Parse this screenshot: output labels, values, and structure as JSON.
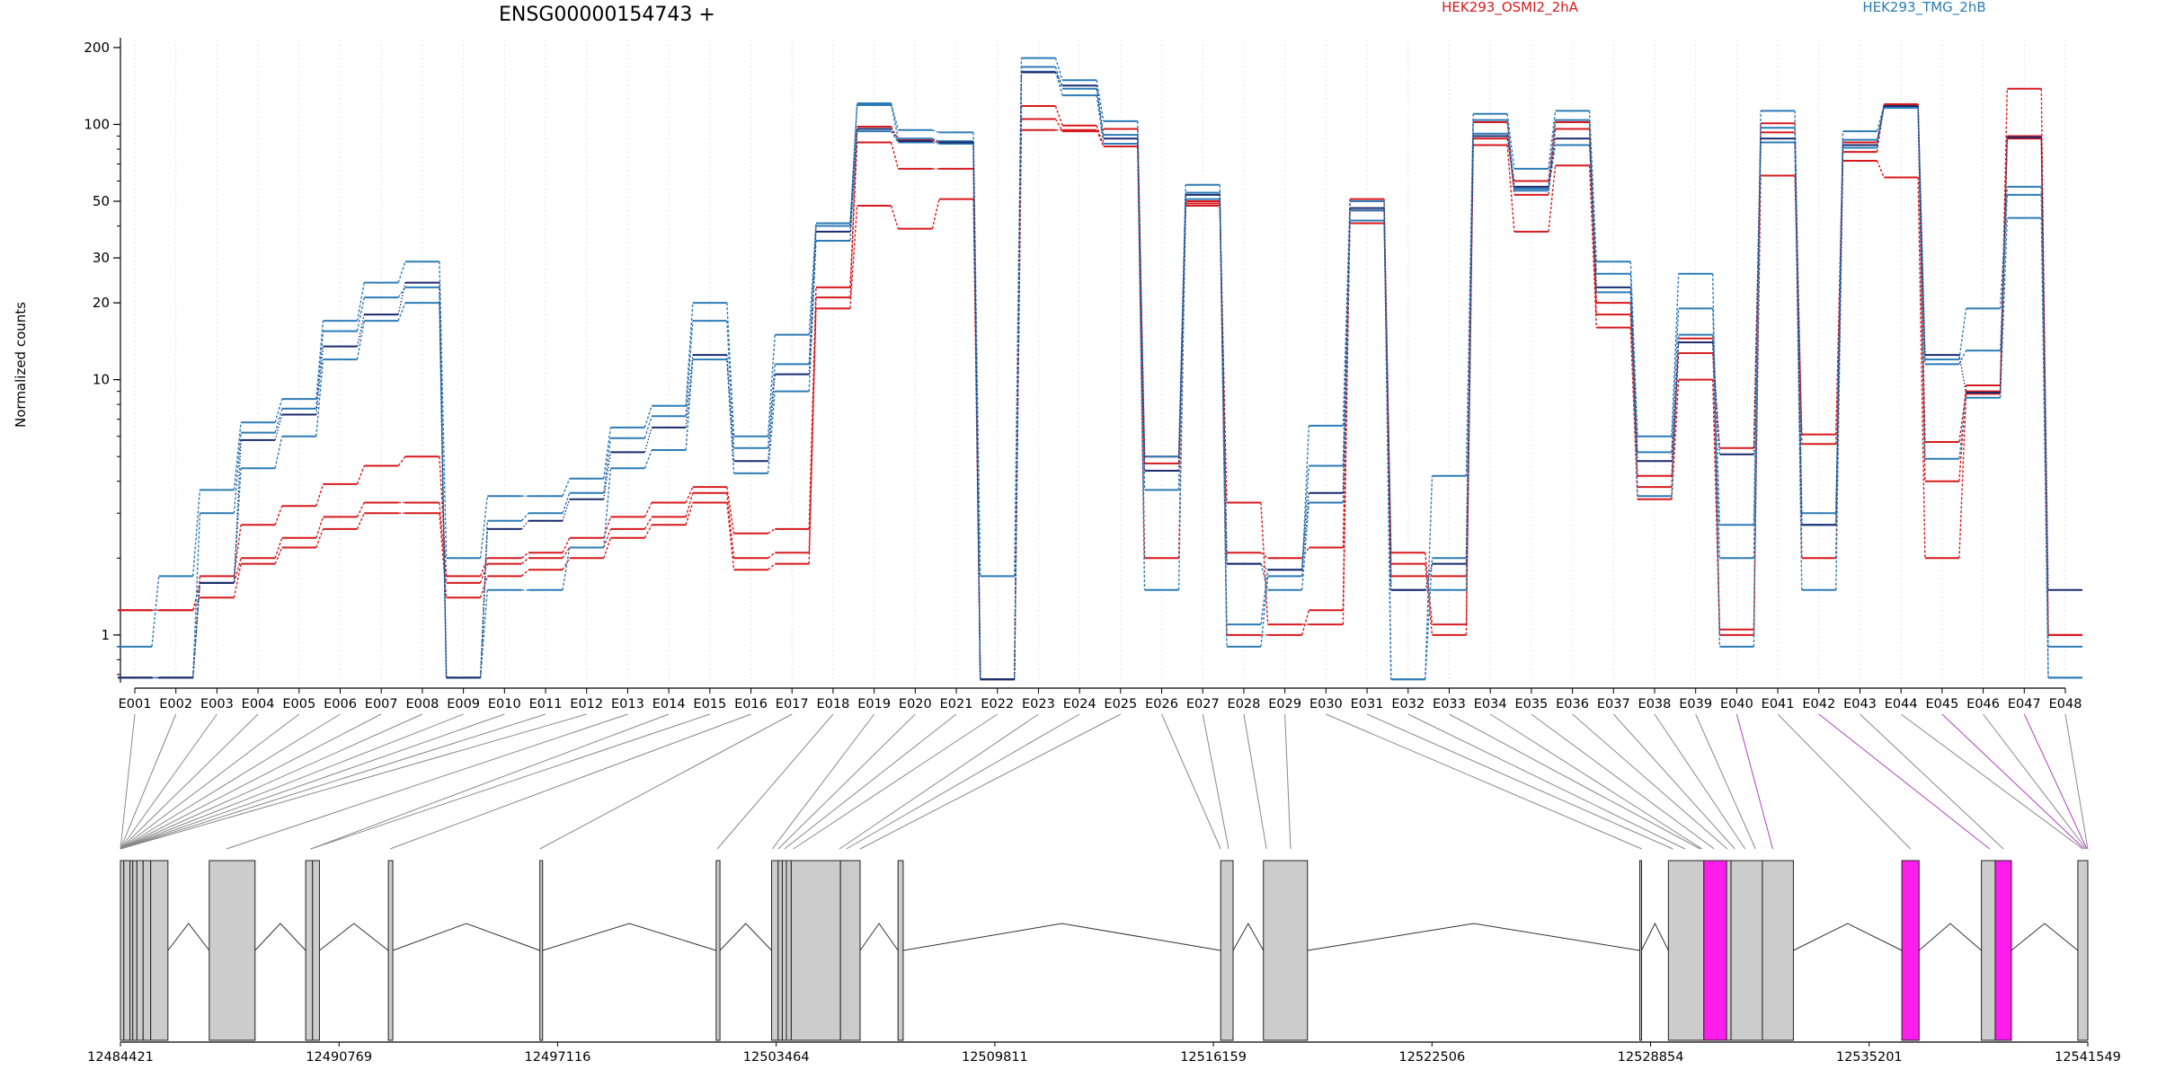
{
  "chart_data": {
    "type": "line",
    "title": "ENSG00000154743 +",
    "ylabel": "Normalized counts",
    "y_scale": "log",
    "ylim": [
      0.65,
      215
    ],
    "y_ticks": [
      {
        "value": 1,
        "label": "1"
      },
      {
        "value": 10,
        "label": "10"
      },
      {
        "value": 20,
        "label": "20"
      },
      {
        "value": 30,
        "label": "30"
      },
      {
        "value": 50,
        "label": "50"
      },
      {
        "value": 100,
        "label": "100"
      },
      {
        "value": 200,
        "label": "200"
      }
    ],
    "legend_placement": "top",
    "legend": [
      {
        "label": "HEK293_OSMI2_2hA",
        "color": "#d7191c"
      },
      {
        "label": "HEK293_TMG_2hB",
        "color": "#2c7bb6"
      }
    ],
    "grid": "vertical",
    "categories": [
      "E001",
      "E002",
      "E003",
      "E004",
      "E005",
      "E006",
      "E007",
      "E008",
      "E009",
      "E010",
      "E011",
      "E012",
      "E013",
      "E014",
      "E015",
      "E016",
      "E017",
      "E018",
      "E019",
      "E020",
      "E021",
      "E022",
      "E023",
      "E024",
      "E025",
      "E026",
      "E027",
      "E028",
      "E029",
      "E030",
      "E031",
      "E032",
      "E033",
      "E034",
      "E035",
      "E036",
      "E037",
      "E038",
      "E039",
      "E040",
      "E041",
      "E042",
      "E043",
      "E044",
      "E045",
      "E046",
      "E047",
      "E048"
    ],
    "series": [
      {
        "group": "HEK293_OSMI2_2hA",
        "color": "#d7191c",
        "values": [
          1.25,
          1.25,
          1.6,
          2.0,
          2.4,
          2.9,
          3.3,
          3.3,
          1.6,
          1.9,
          2.0,
          2.2,
          2.6,
          2.9,
          3.6,
          2.0,
          2.1,
          21,
          98,
          87,
          85,
          0.67,
          118,
          99,
          82,
          5.0,
          50,
          1.0,
          1.0,
          1.25,
          51,
          1.9,
          1.0,
          88,
          60,
          102,
          18,
          3.8,
          14.5,
          1.05,
          63,
          6.1,
          78,
          120,
          4.0,
          9.5,
          90,
          1.0
        ]
      },
      {
        "group": "HEK293_OSMI2_2hA",
        "color": "#d7191c",
        "values": [
          1.25,
          1.25,
          1.4,
          1.9,
          2.2,
          2.6,
          3.0,
          3.0,
          1.4,
          1.7,
          1.8,
          2.0,
          2.4,
          2.7,
          3.3,
          1.8,
          1.9,
          19,
          48,
          39,
          51,
          0.67,
          95,
          95,
          82,
          2.0,
          48,
          3.3,
          1.1,
          1.1,
          46,
          2.1,
          1.1,
          83,
          38,
          69,
          16,
          3.4,
          10,
          1.0,
          101,
          2.0,
          72,
          62,
          2.0,
          8.8,
          138,
          1.0
        ]
      },
      {
        "group": "HEK293_OSMI2_2hA",
        "color": "#d7191c",
        "values": [
          0.68,
          0.68,
          1.7,
          2.7,
          3.2,
          3.9,
          4.6,
          5.0,
          1.7,
          2.0,
          2.1,
          2.4,
          2.9,
          3.3,
          3.8,
          2.5,
          2.6,
          23,
          85,
          67,
          67,
          0.67,
          105,
          94,
          96,
          4.7,
          49,
          2.1,
          2.0,
          2.2,
          41,
          1.7,
          1.7,
          102,
          53,
          96,
          20,
          4.2,
          12.7,
          5.4,
          93,
          5.6,
          85,
          119,
          5.7,
          9.0,
          88,
          1.0
        ]
      },
      {
        "group": "HEK293_TMG_2hB",
        "color": "#2c7bb6",
        "values": [
          0.9,
          1.7,
          3.7,
          6.8,
          8.4,
          17,
          24,
          29,
          2.0,
          3.5,
          3.5,
          4.1,
          6.5,
          7.9,
          20,
          6.0,
          15,
          41,
          121,
          95,
          93,
          1.7,
          182,
          149,
          103,
          5.0,
          58,
          0.9,
          1.7,
          6.6,
          50,
          0.67,
          4.2,
          110,
          67,
          113,
          29,
          6.0,
          26,
          0.9,
          113,
          3.0,
          94,
          118,
          12,
          19,
          57,
          0.9
        ]
      },
      {
        "group": "HEK293_TMG_2hB",
        "color": "#2c7bb6",
        "values": [
          0.68,
          0.68,
          3.0,
          6.2,
          7.7,
          15.5,
          21,
          23,
          0.68,
          2.8,
          3.0,
          3.6,
          5.9,
          7.2,
          17,
          5.4,
          11.5,
          40,
          119,
          88,
          86,
          0.67,
          168,
          138,
          91,
          3.7,
          54,
          1.1,
          1.8,
          4.6,
          46,
          0.67,
          2.0,
          104,
          56,
          104,
          26,
          5.2,
          19,
          2.7,
          97,
          2.7,
          87,
          116,
          11.5,
          13,
          53,
          0.68
        ]
      },
      {
        "group": "HEK293_TMG_2hB",
        "color": "#2c7bb6",
        "values": [
          0.68,
          0.68,
          1.6,
          4.5,
          6.0,
          12,
          17,
          20,
          0.68,
          1.5,
          1.5,
          2.2,
          4.5,
          5.3,
          12,
          4.3,
          9.0,
          35,
          94,
          85,
          84,
          0.67,
          161,
          130,
          84,
          1.5,
          51,
          1.9,
          1.5,
          3.3,
          42,
          1.5,
          1.5,
          92,
          55,
          83,
          22,
          3.5,
          15,
          2.0,
          85,
          1.5,
          81,
          117,
          4.9,
          8.5,
          43,
          0.68
        ]
      },
      {
        "group": "combined",
        "color": "#1a2a6c",
        "values": [
          0.68,
          0.68,
          1.6,
          5.8,
          7.3,
          13.5,
          18,
          24,
          0.68,
          2.6,
          2.8,
          3.4,
          5.2,
          6.5,
          12.5,
          4.8,
          10.5,
          38,
          96,
          86,
          85,
          0.67,
          160,
          142,
          88,
          4.4,
          53,
          1.9,
          1.8,
          3.6,
          47,
          1.5,
          1.9,
          90,
          57,
          88,
          23,
          4.8,
          14,
          5.1,
          88,
          2.7,
          83,
          118,
          12.5,
          8.9,
          89,
          1.5
        ]
      }
    ],
    "transcript_model": {
      "coordinate_range": [
        12484421,
        12541549
      ],
      "coordinate_ticks": [
        12484421,
        12490769,
        12497116,
        12503464,
        12509811,
        12516159,
        12522506,
        12528854,
        12535201,
        12541549
      ],
      "highlight_color": "#ff1dee",
      "exon_color": "#cccccc",
      "exons": [
        {
          "start": 12484421,
          "end": 12484520,
          "highlight": false
        },
        {
          "start": 12484520,
          "end": 12484700,
          "highlight": false
        },
        {
          "start": 12484700,
          "end": 12484780,
          "highlight": false
        },
        {
          "start": 12484780,
          "end": 12484900,
          "highlight": false
        },
        {
          "start": 12484900,
          "end": 12485080,
          "highlight": false
        },
        {
          "start": 12485080,
          "end": 12485300,
          "highlight": false
        },
        {
          "start": 12485300,
          "end": 12485800,
          "highlight": false
        },
        {
          "start": 12487000,
          "end": 12488330,
          "highlight": false
        },
        {
          "start": 12489800,
          "end": 12490000,
          "highlight": false
        },
        {
          "start": 12490000,
          "end": 12490200,
          "highlight": false
        },
        {
          "start": 12492200,
          "end": 12492330,
          "highlight": false
        },
        {
          "start": 12496600,
          "end": 12496680,
          "highlight": false
        },
        {
          "start": 12501720,
          "end": 12501830,
          "highlight": false
        },
        {
          "start": 12503330,
          "end": 12503520,
          "highlight": false
        },
        {
          "start": 12503520,
          "end": 12503640,
          "highlight": false
        },
        {
          "start": 12503640,
          "end": 12503760,
          "highlight": false
        },
        {
          "start": 12503760,
          "end": 12503900,
          "highlight": false
        },
        {
          "start": 12503900,
          "end": 12505330,
          "highlight": false
        },
        {
          "start": 12505330,
          "end": 12505900,
          "highlight": false
        },
        {
          "start": 12507000,
          "end": 12507150,
          "highlight": false
        },
        {
          "start": 12516370,
          "end": 12516730,
          "highlight": false
        },
        {
          "start": 12517610,
          "end": 12518890,
          "highlight": false
        },
        {
          "start": 12528540,
          "end": 12528590,
          "highlight": false
        },
        {
          "start": 12529370,
          "end": 12530400,
          "highlight": false
        },
        {
          "start": 12530400,
          "end": 12531060,
          "highlight": true
        },
        {
          "start": 12531060,
          "end": 12531190,
          "highlight": false
        },
        {
          "start": 12531190,
          "end": 12532100,
          "highlight": false
        },
        {
          "start": 12532100,
          "end": 12533000,
          "highlight": false
        },
        {
          "start": 12536150,
          "end": 12536650,
          "highlight": true
        },
        {
          "start": 12538460,
          "end": 12538860,
          "highlight": false
        },
        {
          "start": 12538860,
          "end": 12539330,
          "highlight": true
        },
        {
          "start": 12541260,
          "end": 12541549,
          "highlight": false
        }
      ],
      "connector_targets": [
        12484421,
        12484421,
        12484421,
        12484421,
        12484421,
        12484421,
        12484421,
        12484421,
        12484421,
        12484421,
        12484421,
        12484421,
        12487500,
        12489950,
        12489950,
        12492250,
        12496600,
        12501750,
        12503350,
        12503520,
        12503700,
        12503960,
        12505300,
        12505500,
        12505900,
        12516370,
        12516600,
        12517700,
        12518400,
        12528600,
        12529500,
        12529850,
        12530300,
        12530350,
        12530700,
        12531080,
        12531300,
        12531600,
        12531900,
        12532400,
        12536400,
        12538700,
        12539100,
        12541400,
        12541450,
        12541500,
        12541520,
        12541549
      ],
      "highlight_connectors": [
        39,
        41,
        44,
        46
      ]
    }
  }
}
